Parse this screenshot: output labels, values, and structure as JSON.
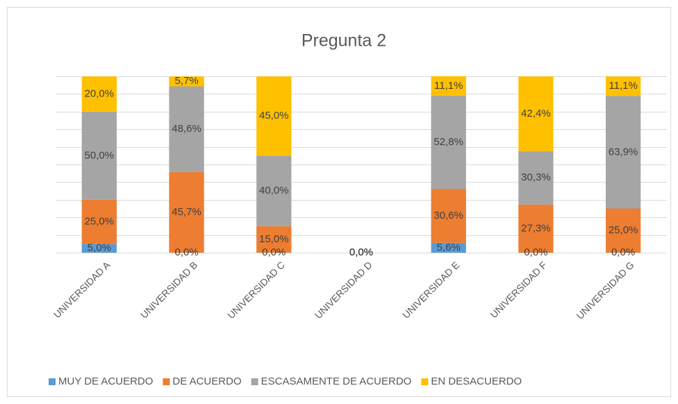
{
  "chart_data": {
    "type": "stacked_bar",
    "title": "Pregunta 2",
    "categories": [
      "UNIVERSIDAD A",
      "UNIVERSIDAD B",
      "UNIVERSIDAD C",
      "UNIVERSIDAD D",
      "UNIVERSIDAD E",
      "UNIVERSIDAD F",
      "UNIVERSIDAD G"
    ],
    "series": [
      {
        "name": "MUY DE ACUERDO",
        "color": "#5b9bd5",
        "values": [
          5.0,
          0,
          0,
          0,
          5.6,
          0,
          0
        ],
        "value_labels": [
          "5,0%",
          "0,0%",
          "0,0%",
          "0,0%",
          "5,6%",
          "0,0%",
          "0,0%"
        ]
      },
      {
        "name": "DE ACUERDO",
        "color": "#ed7d31",
        "values": [
          25.0,
          45.7,
          15.0,
          0,
          30.6,
          27.3,
          25.0
        ],
        "value_labels": [
          "25,0%",
          "45,7%",
          "15,0%",
          "0,0%",
          "30,6%",
          "27,3%",
          "25,0%"
        ]
      },
      {
        "name": "ESCASAMENTE DE ACUERDO",
        "color": "#a5a5a5",
        "values": [
          50.0,
          48.6,
          40.0,
          0,
          52.8,
          30.3,
          63.9
        ],
        "value_labels": [
          "50,0%",
          "48,6%",
          "40,0%",
          "0,0%",
          "52,8%",
          "30,3%",
          "63,9%"
        ]
      },
      {
        "name": "EN DESACUERDO",
        "color": "#ffc000",
        "values": [
          20.0,
          5.7,
          45.0,
          0,
          11.1,
          42.4,
          11.1
        ],
        "value_labels": [
          "20,0%",
          "5,7%",
          "45,0%",
          "0,0%",
          "11,1%",
          "42,4%",
          "11,1%"
        ]
      }
    ],
    "ylim": [
      0,
      100
    ],
    "yticks": [
      0,
      10,
      20,
      30,
      40,
      50,
      60,
      70,
      80,
      90,
      100
    ],
    "grid": true,
    "legend": "bottom"
  }
}
